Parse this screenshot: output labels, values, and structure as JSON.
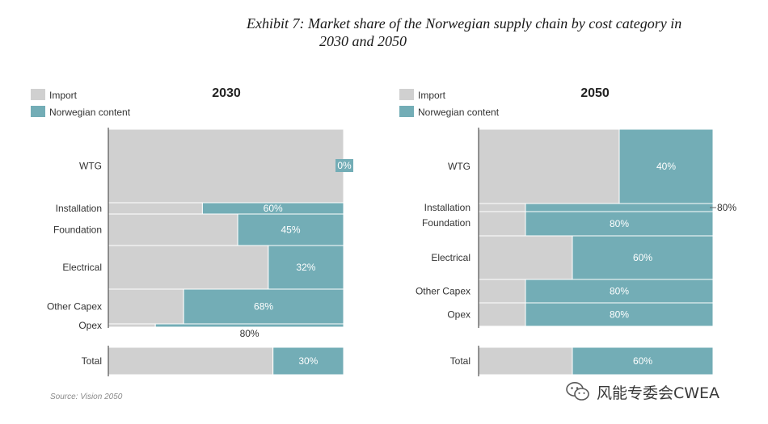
{
  "title": {
    "line1": "Exhibit 7: Market share of the Norwegian supply chain by cost category in",
    "line2": "2030 and 2050"
  },
  "colors": {
    "import": "#d0d0d0",
    "norwegian": "#73adb6",
    "axis": "#555555",
    "text": "#333333"
  },
  "legend": {
    "import": "Import",
    "norwegian": "Norwegian content"
  },
  "chart_data": [
    {
      "type": "marimekko",
      "title": "2030",
      "series": [
        {
          "name": "Import",
          "values": [
            100,
            40,
            55,
            68,
            32,
            20
          ]
        },
        {
          "name": "Norwegian content",
          "values": [
            0,
            60,
            45,
            32,
            68,
            80
          ]
        }
      ],
      "categories": [
        {
          "label": "WTG",
          "norwegian_pct": 0,
          "value_label": "0%",
          "label_pos": "inside-right"
        },
        {
          "label": "Installation",
          "norwegian_pct": 60,
          "value_label": "60%",
          "label_pos": "inside"
        },
        {
          "label": "Foundation",
          "norwegian_pct": 45,
          "value_label": "45%",
          "label_pos": "inside"
        },
        {
          "label": "Electrical",
          "norwegian_pct": 32,
          "value_label": "32%",
          "label_pos": "inside"
        },
        {
          "label": "Other Capex",
          "norwegian_pct": 68,
          "value_label": "68%",
          "label_pos": "inside"
        },
        {
          "label": "Opex",
          "norwegian_pct": 80,
          "value_label": "80%",
          "label_pos": "below"
        }
      ],
      "total": {
        "label": "Total",
        "norwegian_pct": 30,
        "value_label": "30%"
      },
      "xlim": [
        0,
        100
      ]
    },
    {
      "type": "marimekko",
      "title": "2050",
      "series": [
        {
          "name": "Import",
          "values": [
            60,
            20,
            20,
            40,
            20,
            20
          ]
        },
        {
          "name": "Norwegian content",
          "values": [
            40,
            80,
            80,
            60,
            80,
            80
          ]
        }
      ],
      "categories": [
        {
          "label": "WTG",
          "norwegian_pct": 40,
          "value_label": "40%",
          "label_pos": "inside"
        },
        {
          "label": "Installation",
          "norwegian_pct": 80,
          "value_label": "80%",
          "label_pos": "outside-right"
        },
        {
          "label": "Foundation",
          "norwegian_pct": 80,
          "value_label": "80%",
          "label_pos": "inside"
        },
        {
          "label": "Electrical",
          "norwegian_pct": 60,
          "value_label": "60%",
          "label_pos": "inside"
        },
        {
          "label": "Other Capex",
          "norwegian_pct": 80,
          "value_label": "80%",
          "label_pos": "inside"
        },
        {
          "label": "Opex",
          "norwegian_pct": 80,
          "value_label": "80%",
          "label_pos": "inside"
        }
      ],
      "total": {
        "label": "Total",
        "norwegian_pct": 60,
        "value_label": "60%"
      },
      "xlim": [
        0,
        100
      ]
    }
  ],
  "source": "Source: Vision 2050",
  "watermark": {
    "text": "风能专委会CWEA",
    "icon": "wechat-icon"
  }
}
